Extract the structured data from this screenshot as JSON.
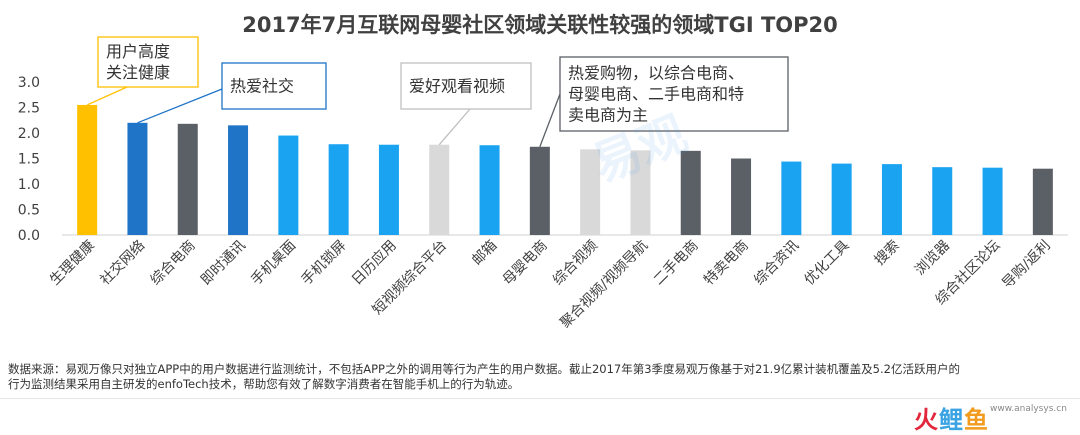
{
  "title": "2017年7月互联网母婴社区领域关联性较强的领域TGI TOP20",
  "chart_data": {
    "type": "bar",
    "title": "2017年7月互联网母婴社区领域关联性较强的领域TGI TOP20",
    "categories": [
      "生理健康",
      "社交网络",
      "综合电商",
      "即时通讯",
      "手机桌面",
      "手机锁屏",
      "日历应用",
      "短视频综合平台",
      "邮箱",
      "母婴电商",
      "综合视频",
      "聚合视频/视频导航",
      "二手电商",
      "特卖电商",
      "综合资讯",
      "优化工具",
      "搜索",
      "浏览器",
      "综合社区论坛",
      "导购/返利"
    ],
    "values": [
      2.55,
      2.2,
      2.18,
      2.15,
      1.95,
      1.78,
      1.77,
      1.77,
      1.76,
      1.73,
      1.68,
      1.66,
      1.65,
      1.5,
      1.44,
      1.4,
      1.39,
      1.33,
      1.32,
      1.3
    ],
    "colors": [
      "#ffc000",
      "#1f74c8",
      "#5b5f66",
      "#1f74c8",
      "#19a3f0",
      "#19a3f0",
      "#19a3f0",
      "#d9d9d9",
      "#19a3f0",
      "#5b5f66",
      "#d9d9d9",
      "#d9d9d9",
      "#5b5f66",
      "#5b5f66",
      "#19a3f0",
      "#19a3f0",
      "#19a3f0",
      "#19a3f0",
      "#19a3f0",
      "#5b5f66"
    ],
    "yticks": [
      "0.0",
      "0.5",
      "1.0",
      "1.5",
      "2.0",
      "2.5",
      "3.0"
    ],
    "ylim": [
      0,
      3.0
    ],
    "grid": false,
    "annotations": [
      {
        "text": [
          "用户高度",
          "关注健康"
        ],
        "target": 0,
        "border": "#ffc000"
      },
      {
        "text": [
          "热爱社交"
        ],
        "target": 1,
        "border": "#1f74c8"
      },
      {
        "text": [
          "爱好观看视频"
        ],
        "target": 7,
        "border": "#bfbfbf"
      },
      {
        "text": [
          "热爱购物，以综合电商、",
          "母婴电商、二手电商和特",
          "卖电商为主"
        ],
        "target": 9,
        "border": "#5b5f66"
      }
    ]
  },
  "footer": {
    "line1": "数据来源：易观万像只对独立APP中的用户数据进行监测统计，不包括APP之外的调用等行为产生的用户数据。截止2017年第3季度易观万像基于对21.9亿累计装机覆盖及5.2亿活跃用户的",
    "line2": "行为监测结果采用自主研发的enfoTech技术，帮助您有效了解数字消费者在智能手机上的行为轨迹。"
  },
  "watermark": "易观",
  "logo": {
    "part1": "火",
    "part2": "鲤",
    "part3": "鱼"
  },
  "site": "www.analysys.cn"
}
